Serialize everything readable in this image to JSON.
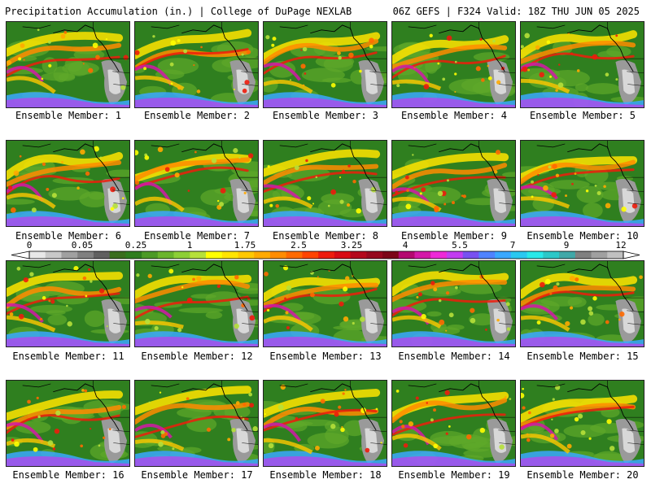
{
  "header": {
    "title": "Precipitation Accumulation (in.) | College of DuPage NEXLAB",
    "run_info": "06Z GEFS | F324 Valid: 18Z THU JUN 05 2025"
  },
  "legend": {
    "tick_labels": [
      "0",
      "0.05",
      "0.25",
      "1",
      "1.75",
      "2.5",
      "3.25",
      "4",
      "5.5",
      "7",
      "9",
      "12"
    ],
    "colors": [
      "#e8e8e8",
      "#c8c8c8",
      "#a0a0a0",
      "#808080",
      "#606060",
      "#3a6e1e",
      "#2e7d1e",
      "#4c9a26",
      "#6bb52c",
      "#8dcf36",
      "#b6e03a",
      "#ffff00",
      "#ffe400",
      "#ffc800",
      "#ffaa00",
      "#ff8c00",
      "#ff6a00",
      "#ff4400",
      "#ee1c0c",
      "#d80a14",
      "#b4081c",
      "#96081e",
      "#7c0618",
      "#b40870",
      "#d418a8",
      "#ee28d8",
      "#c23cf0",
      "#7850f0",
      "#4f83ff",
      "#3aa8ff",
      "#2ac8f0",
      "#28e8e8",
      "#2cc8c8",
      "#40a8a8",
      "#808080",
      "#a0a0a0",
      "#c0c0c0"
    ]
  },
  "members": [
    {
      "label": "Ensemble Member: 1"
    },
    {
      "label": "Ensemble Member: 2"
    },
    {
      "label": "Ensemble Member: 3"
    },
    {
      "label": "Ensemble Member: 4"
    },
    {
      "label": "Ensemble Member: 5"
    },
    {
      "label": "Ensemble Member: 6"
    },
    {
      "label": "Ensemble Member: 7"
    },
    {
      "label": "Ensemble Member: 8"
    },
    {
      "label": "Ensemble Member: 9"
    },
    {
      "label": "Ensemble Member: 10"
    },
    {
      "label": "Ensemble Member: 11"
    },
    {
      "label": "Ensemble Member: 12"
    },
    {
      "label": "Ensemble Member: 13"
    },
    {
      "label": "Ensemble Member: 14"
    },
    {
      "label": "Ensemble Member: 15"
    },
    {
      "label": "Ensemble Member: 16"
    },
    {
      "label": "Ensemble Member: 17"
    },
    {
      "label": "Ensemble Member: 18"
    },
    {
      "label": "Ensemble Member: 19"
    },
    {
      "label": "Ensemble Member: 20"
    }
  ]
}
